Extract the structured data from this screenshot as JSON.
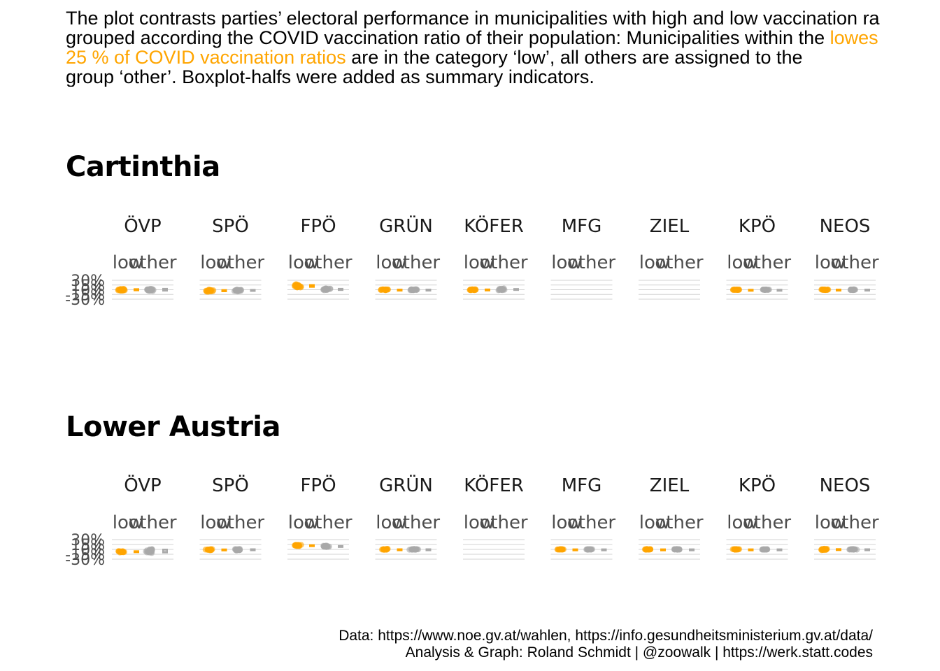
{
  "intro": {
    "line1": "The plot contrasts parties’ electoral performance in municipalities with high and low vaccination ra",
    "line2_pre": "grouped according the COVID vaccination ratio of their population: Municipalities within the ",
    "line2_hl": "lowes",
    "line3_hl": "25 % of COVID vaccination ratios",
    "line3_post": " are in the category ‘low’, all others are assigned to the",
    "line4": "group ‘other’. Boxplot-halfs were added as summary indicators."
  },
  "caption": {
    "line1": "Data: https://www.noe.gv.at/wahlen, https://info.gesundheitsministerium.gv.at/data/",
    "line2": "Analysis & Graph: Roland Schmidt | @zoowalk | https://werk.statt.codes"
  },
  "colors": {
    "low": "#FFA500",
    "other": "#A9A9A9",
    "grid": "#D3D3D3",
    "text_muted": "#4D4D4D"
  },
  "chart_data": [
    {
      "type": "scatter",
      "title": "Cartinthia",
      "groups": [
        "low",
        "other"
      ],
      "ylim": [
        -30,
        30
      ],
      "y_ticks": [
        "30%",
        "15%",
        "0%",
        "-15%",
        "-30%"
      ],
      "panels": [
        {
          "party": "ÖVP",
          "low": {
            "center": 0,
            "spread": 5
          },
          "other": {
            "center": 0,
            "spread": 7
          }
        },
        {
          "party": "SPÖ",
          "low": {
            "center": -3,
            "spread": 5
          },
          "other": {
            "center": -2,
            "spread": 4
          }
        },
        {
          "party": "FPÖ",
          "low": {
            "center": 12,
            "spread": 7
          },
          "other": {
            "center": 1,
            "spread": 5
          }
        },
        {
          "party": "GRÜN",
          "low": {
            "center": 0,
            "spread": 2
          },
          "other": {
            "center": 0,
            "spread": 2
          }
        },
        {
          "party": "KÖFER",
          "low": {
            "center": 0,
            "spread": 3
          },
          "other": {
            "center": 1,
            "spread": 4
          }
        },
        {
          "party": "MFG",
          "low": null,
          "other": null
        },
        {
          "party": "ZIEL",
          "low": null,
          "other": null
        },
        {
          "party": "KPÖ",
          "low": {
            "center": 0,
            "spread": 1
          },
          "other": {
            "center": 0,
            "spread": 1
          }
        },
        {
          "party": "NEOS",
          "low": {
            "center": 0,
            "spread": 2
          },
          "other": {
            "center": 0,
            "spread": 2
          }
        }
      ]
    },
    {
      "type": "scatter",
      "title": "Lower Austria",
      "groups": [
        "low",
        "other"
      ],
      "ylim": [
        -30,
        30
      ],
      "y_ticks": [
        "30%",
        "15%",
        "0%",
        "-15%",
        "-30%"
      ],
      "panels": [
        {
          "party": "ÖVP",
          "low": {
            "center": -7,
            "spread": 4
          },
          "other": {
            "center": -5,
            "spread": 10
          }
        },
        {
          "party": "SPÖ",
          "low": {
            "center": -1,
            "spread": 3
          },
          "other": {
            "center": -1,
            "spread": 4
          }
        },
        {
          "party": "FPÖ",
          "low": {
            "center": 12,
            "spread": 3
          },
          "other": {
            "center": 9,
            "spread": 4
          }
        },
        {
          "party": "GRÜN",
          "low": {
            "center": 0,
            "spread": 2
          },
          "other": {
            "center": 0,
            "spread": 2
          }
        },
        {
          "party": "KÖFER",
          "low": null,
          "other": null
        },
        {
          "party": "MFG",
          "low": {
            "center": 0,
            "spread": 1.5
          },
          "other": {
            "center": 0,
            "spread": 1.5
          }
        },
        {
          "party": "ZIEL",
          "low": {
            "center": 0,
            "spread": 1.5
          },
          "other": {
            "center": 0,
            "spread": 1.5
          }
        },
        {
          "party": "KPÖ",
          "low": {
            "center": 0,
            "spread": 1.5
          },
          "other": {
            "center": 0,
            "spread": 1.5
          }
        },
        {
          "party": "NEOS",
          "low": {
            "center": 0,
            "spread": 3
          },
          "other": {
            "center": 0,
            "spread": 2
          }
        }
      ]
    }
  ]
}
